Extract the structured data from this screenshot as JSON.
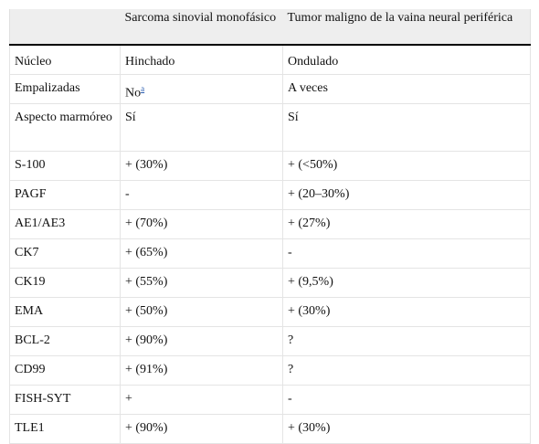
{
  "table": {
    "headers": [
      "",
      "Sarcoma sinovial monofásico",
      "Tumor maligno de la vaina neural periférica"
    ],
    "rows": [
      {
        "label": "Núcleo",
        "synovial": "Hinchado",
        "mpnst": "Ondulado"
      },
      {
        "label": "Empalizadas",
        "synovial": "No",
        "synovial_footnote": "a",
        "mpnst": "A veces"
      },
      {
        "label": "Aspecto marmóreo",
        "synovial": "Sí",
        "mpnst": "Sí"
      },
      {
        "label": "S-100",
        "synovial": "+ (30%)",
        "mpnst": "+ (<50%)"
      },
      {
        "label": "PAGF",
        "synovial": "-",
        "mpnst": "+ (20–30%)"
      },
      {
        "label": "AE1/AE3",
        "synovial": "+ (70%)",
        "mpnst": "+ (27%)"
      },
      {
        "label": "CK7",
        "synovial": "+ (65%)",
        "mpnst": "-"
      },
      {
        "label": "CK19",
        "synovial": "+ (55%)",
        "mpnst": "+ (9,5%)"
      },
      {
        "label": "EMA",
        "synovial": "+ (50%)",
        "mpnst": "+ (30%)"
      },
      {
        "label": "BCL-2",
        "synovial": "+ (90%)",
        "mpnst": "?"
      },
      {
        "label": "CD99",
        "synovial": "+ (91%)",
        "mpnst": "?"
      },
      {
        "label": "FISH-SYT",
        "synovial": "+",
        "mpnst": "-"
      },
      {
        "label": "TLE1",
        "synovial": "+ (90%)",
        "mpnst": "+ (30%)"
      }
    ]
  },
  "colors": {
    "header_bg": "#eeeeee",
    "header_rule": "#000000",
    "grid": "#e4e4e4",
    "link": "#2a5db0"
  }
}
